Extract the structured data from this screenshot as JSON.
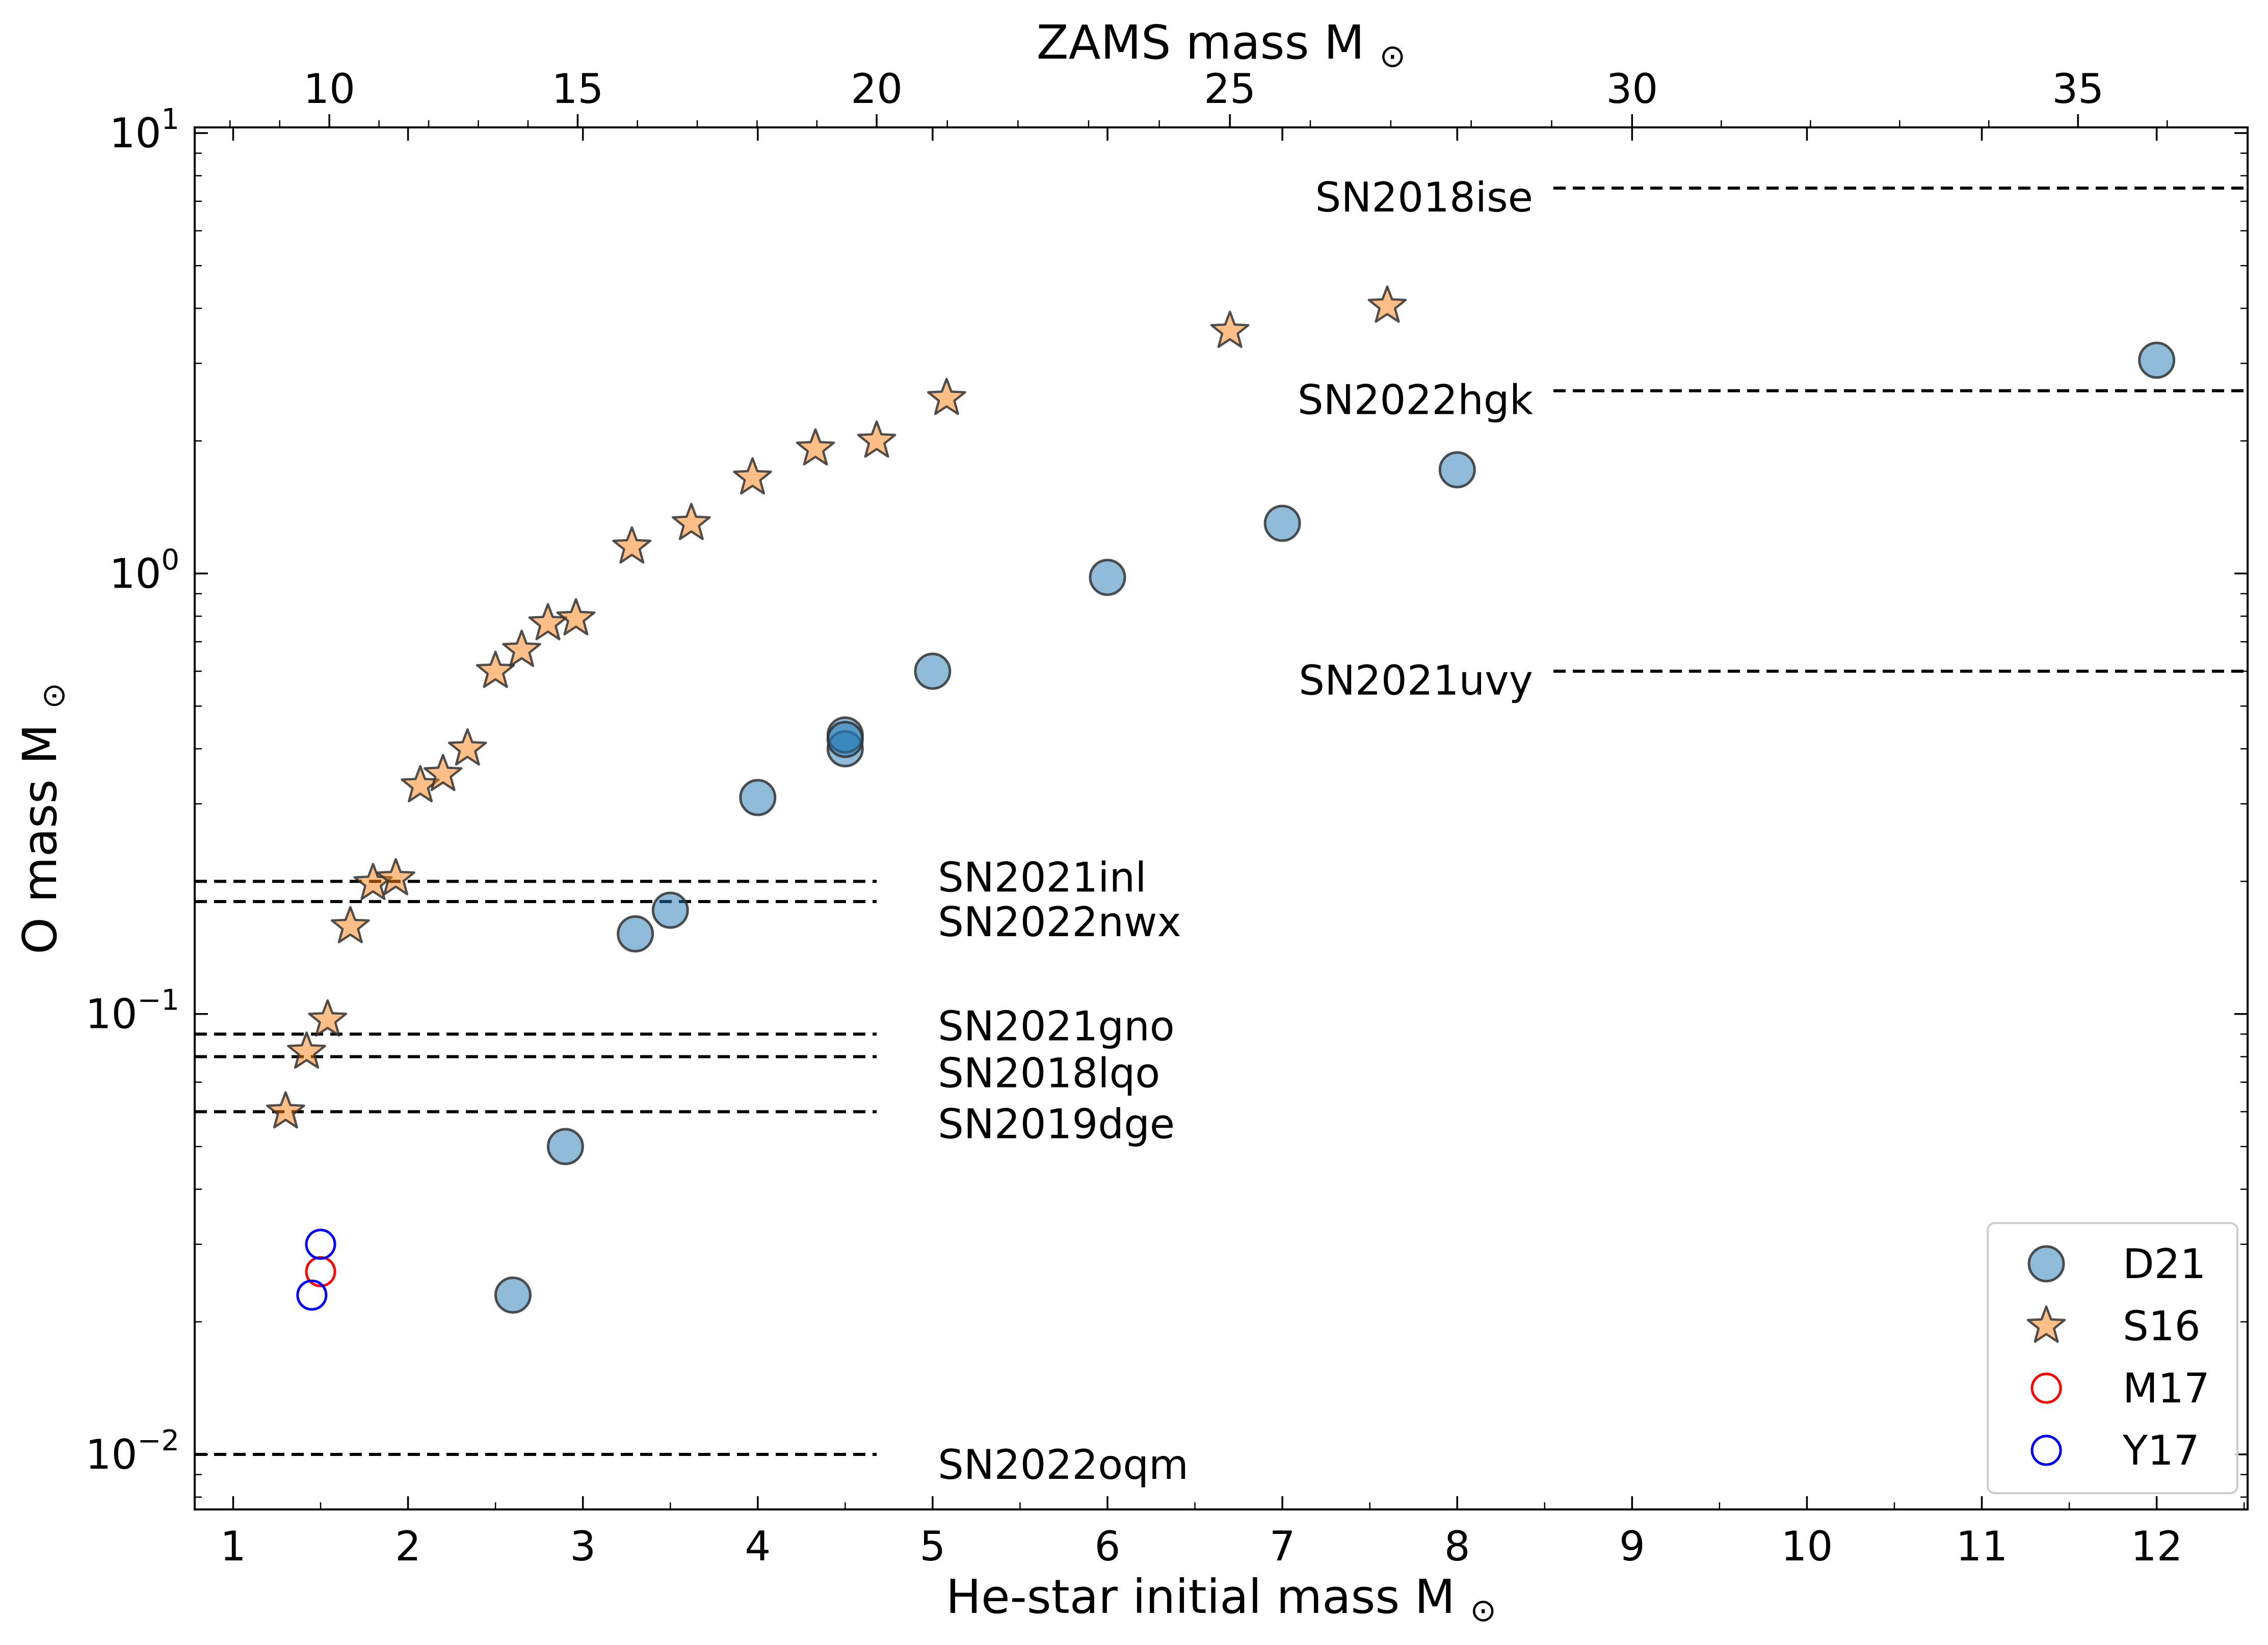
{
  "chart_data": {
    "type": "scatter",
    "xlabel": "He-star initial mass M",
    "ylabel": "O mass M",
    "top_xlabel": "ZAMS mass M",
    "unit_symbol": "⊙",
    "yscale": "log",
    "xlim": [
      0.78,
      12.52
    ],
    "ylim": [
      0.0075,
      10.3
    ],
    "x_ticks": [
      "1",
      "2",
      "3",
      "4",
      "5",
      "6",
      "7",
      "8",
      "9",
      "10",
      "11",
      "12"
    ],
    "y_ticks": [
      {
        "value": 10,
        "base": "10",
        "exp": "1"
      },
      {
        "value": 1,
        "base": "10",
        "exp": "0"
      },
      {
        "value": 0.1,
        "base": "10",
        "exp": "−1"
      },
      {
        "value": 0.01,
        "base": "10",
        "exp": "−2"
      }
    ],
    "top_ticks": [
      {
        "label": "10",
        "he_mass": 1.55
      },
      {
        "label": "15",
        "he_mass": 2.97
      },
      {
        "label": "20",
        "he_mass": 4.68
      },
      {
        "label": "25",
        "he_mass": 6.7
      },
      {
        "label": "30",
        "he_mass": 9.0
      },
      {
        "label": "35",
        "he_mass": 11.55
      }
    ],
    "legend_position": "lower-right",
    "series": [
      {
        "name": "D21",
        "marker": "circle-filled",
        "color": "#1f77b4",
        "points": [
          [
            2.6,
            0.023
          ],
          [
            2.9,
            0.05
          ],
          [
            3.3,
            0.152
          ],
          [
            3.5,
            0.172
          ],
          [
            4.0,
            0.31
          ],
          [
            4.5,
            0.4
          ],
          [
            4.5,
            0.43
          ],
          [
            4.5,
            0.42
          ],
          [
            5.0,
            0.6
          ],
          [
            6.0,
            0.98
          ],
          [
            7.0,
            1.3
          ],
          [
            8.0,
            1.72
          ],
          [
            12.0,
            3.05
          ]
        ]
      },
      {
        "name": "S16",
        "marker": "star",
        "color": "#ff7f0e",
        "points": [
          [
            1.3,
            0.06
          ],
          [
            1.42,
            0.082
          ],
          [
            1.54,
            0.097
          ],
          [
            1.67,
            0.158
          ],
          [
            1.8,
            0.198
          ],
          [
            1.93,
            0.203
          ],
          [
            2.07,
            0.33
          ],
          [
            2.2,
            0.35
          ],
          [
            2.34,
            0.4
          ],
          [
            2.5,
            0.6
          ],
          [
            2.65,
            0.67
          ],
          [
            2.8,
            0.77
          ],
          [
            2.96,
            0.79
          ],
          [
            3.28,
            1.15
          ],
          [
            3.62,
            1.3
          ],
          [
            3.97,
            1.65
          ],
          [
            4.33,
            1.92
          ],
          [
            4.68,
            2.0
          ],
          [
            5.08,
            2.5
          ],
          [
            6.7,
            3.55
          ],
          [
            7.6,
            4.05
          ]
        ]
      },
      {
        "name": "M17",
        "marker": "circle-open",
        "color": "#ff0000",
        "points": [
          [
            1.5,
            0.026
          ]
        ]
      },
      {
        "name": "Y17",
        "marker": "circle-open",
        "color": "#0000ff",
        "points": [
          [
            1.5,
            0.03
          ],
          [
            1.45,
            0.023
          ]
        ]
      }
    ],
    "reference_lines": [
      {
        "label": "SN2018ise",
        "y": 7.5,
        "x_range": [
          8.55,
          12.52
        ],
        "label_side": "left"
      },
      {
        "label": "SN2022hgk",
        "y": 2.6,
        "x_range": [
          8.55,
          12.52
        ],
        "label_side": "left"
      },
      {
        "label": "SN2021uvy",
        "y": 0.6,
        "x_range": [
          8.55,
          12.52
        ],
        "label_side": "left"
      },
      {
        "label": "SN2021inl",
        "y": 0.2,
        "x_range": [
          0.78,
          4.68
        ],
        "label_side": "right"
      },
      {
        "label": "SN2022nwx",
        "y": 0.18,
        "x_range": [
          0.78,
          4.68
        ],
        "label_side": "right"
      },
      {
        "label": "SN2021gno",
        "y": 0.09,
        "x_range": [
          0.78,
          4.68
        ],
        "label_side": "right"
      },
      {
        "label": "SN2018lqo",
        "y": 0.08,
        "x_range": [
          0.78,
          4.68
        ],
        "label_side": "right"
      },
      {
        "label": "SN2019dge",
        "y": 0.06,
        "x_range": [
          0.78,
          4.68
        ],
        "label_side": "right"
      },
      {
        "label": "SN2022oqm",
        "y": 0.01,
        "x_range": [
          0.78,
          4.68
        ],
        "label_side": "right"
      }
    ]
  }
}
